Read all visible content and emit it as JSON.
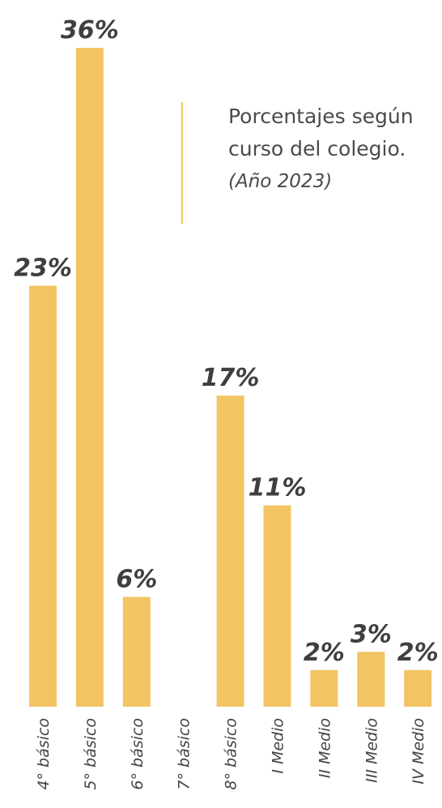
{
  "chart_data": {
    "type": "bar",
    "categories": [
      "4° básico",
      "5° básico",
      "6° básico",
      "7° básico",
      "8° básico",
      "I Medio",
      "II Medio",
      "III Medio",
      "IV Medio"
    ],
    "values": [
      23,
      36,
      6,
      0,
      17,
      11,
      2,
      3,
      2
    ],
    "value_labels": [
      "23%",
      "36%",
      "6%",
      "",
      "17%",
      "11%",
      "2%",
      "3%",
      "2%"
    ],
    "title": "Porcentajes según curso del colegio.",
    "title_lines": [
      "Porcentajes según",
      "curso del colegio."
    ],
    "subtitle": "(Año 2023)",
    "xlabel": "",
    "ylabel": "",
    "ylim": [
      0,
      36
    ],
    "grid": false,
    "bar_color": "#F2C464",
    "accent_color": "#F2C464"
  }
}
